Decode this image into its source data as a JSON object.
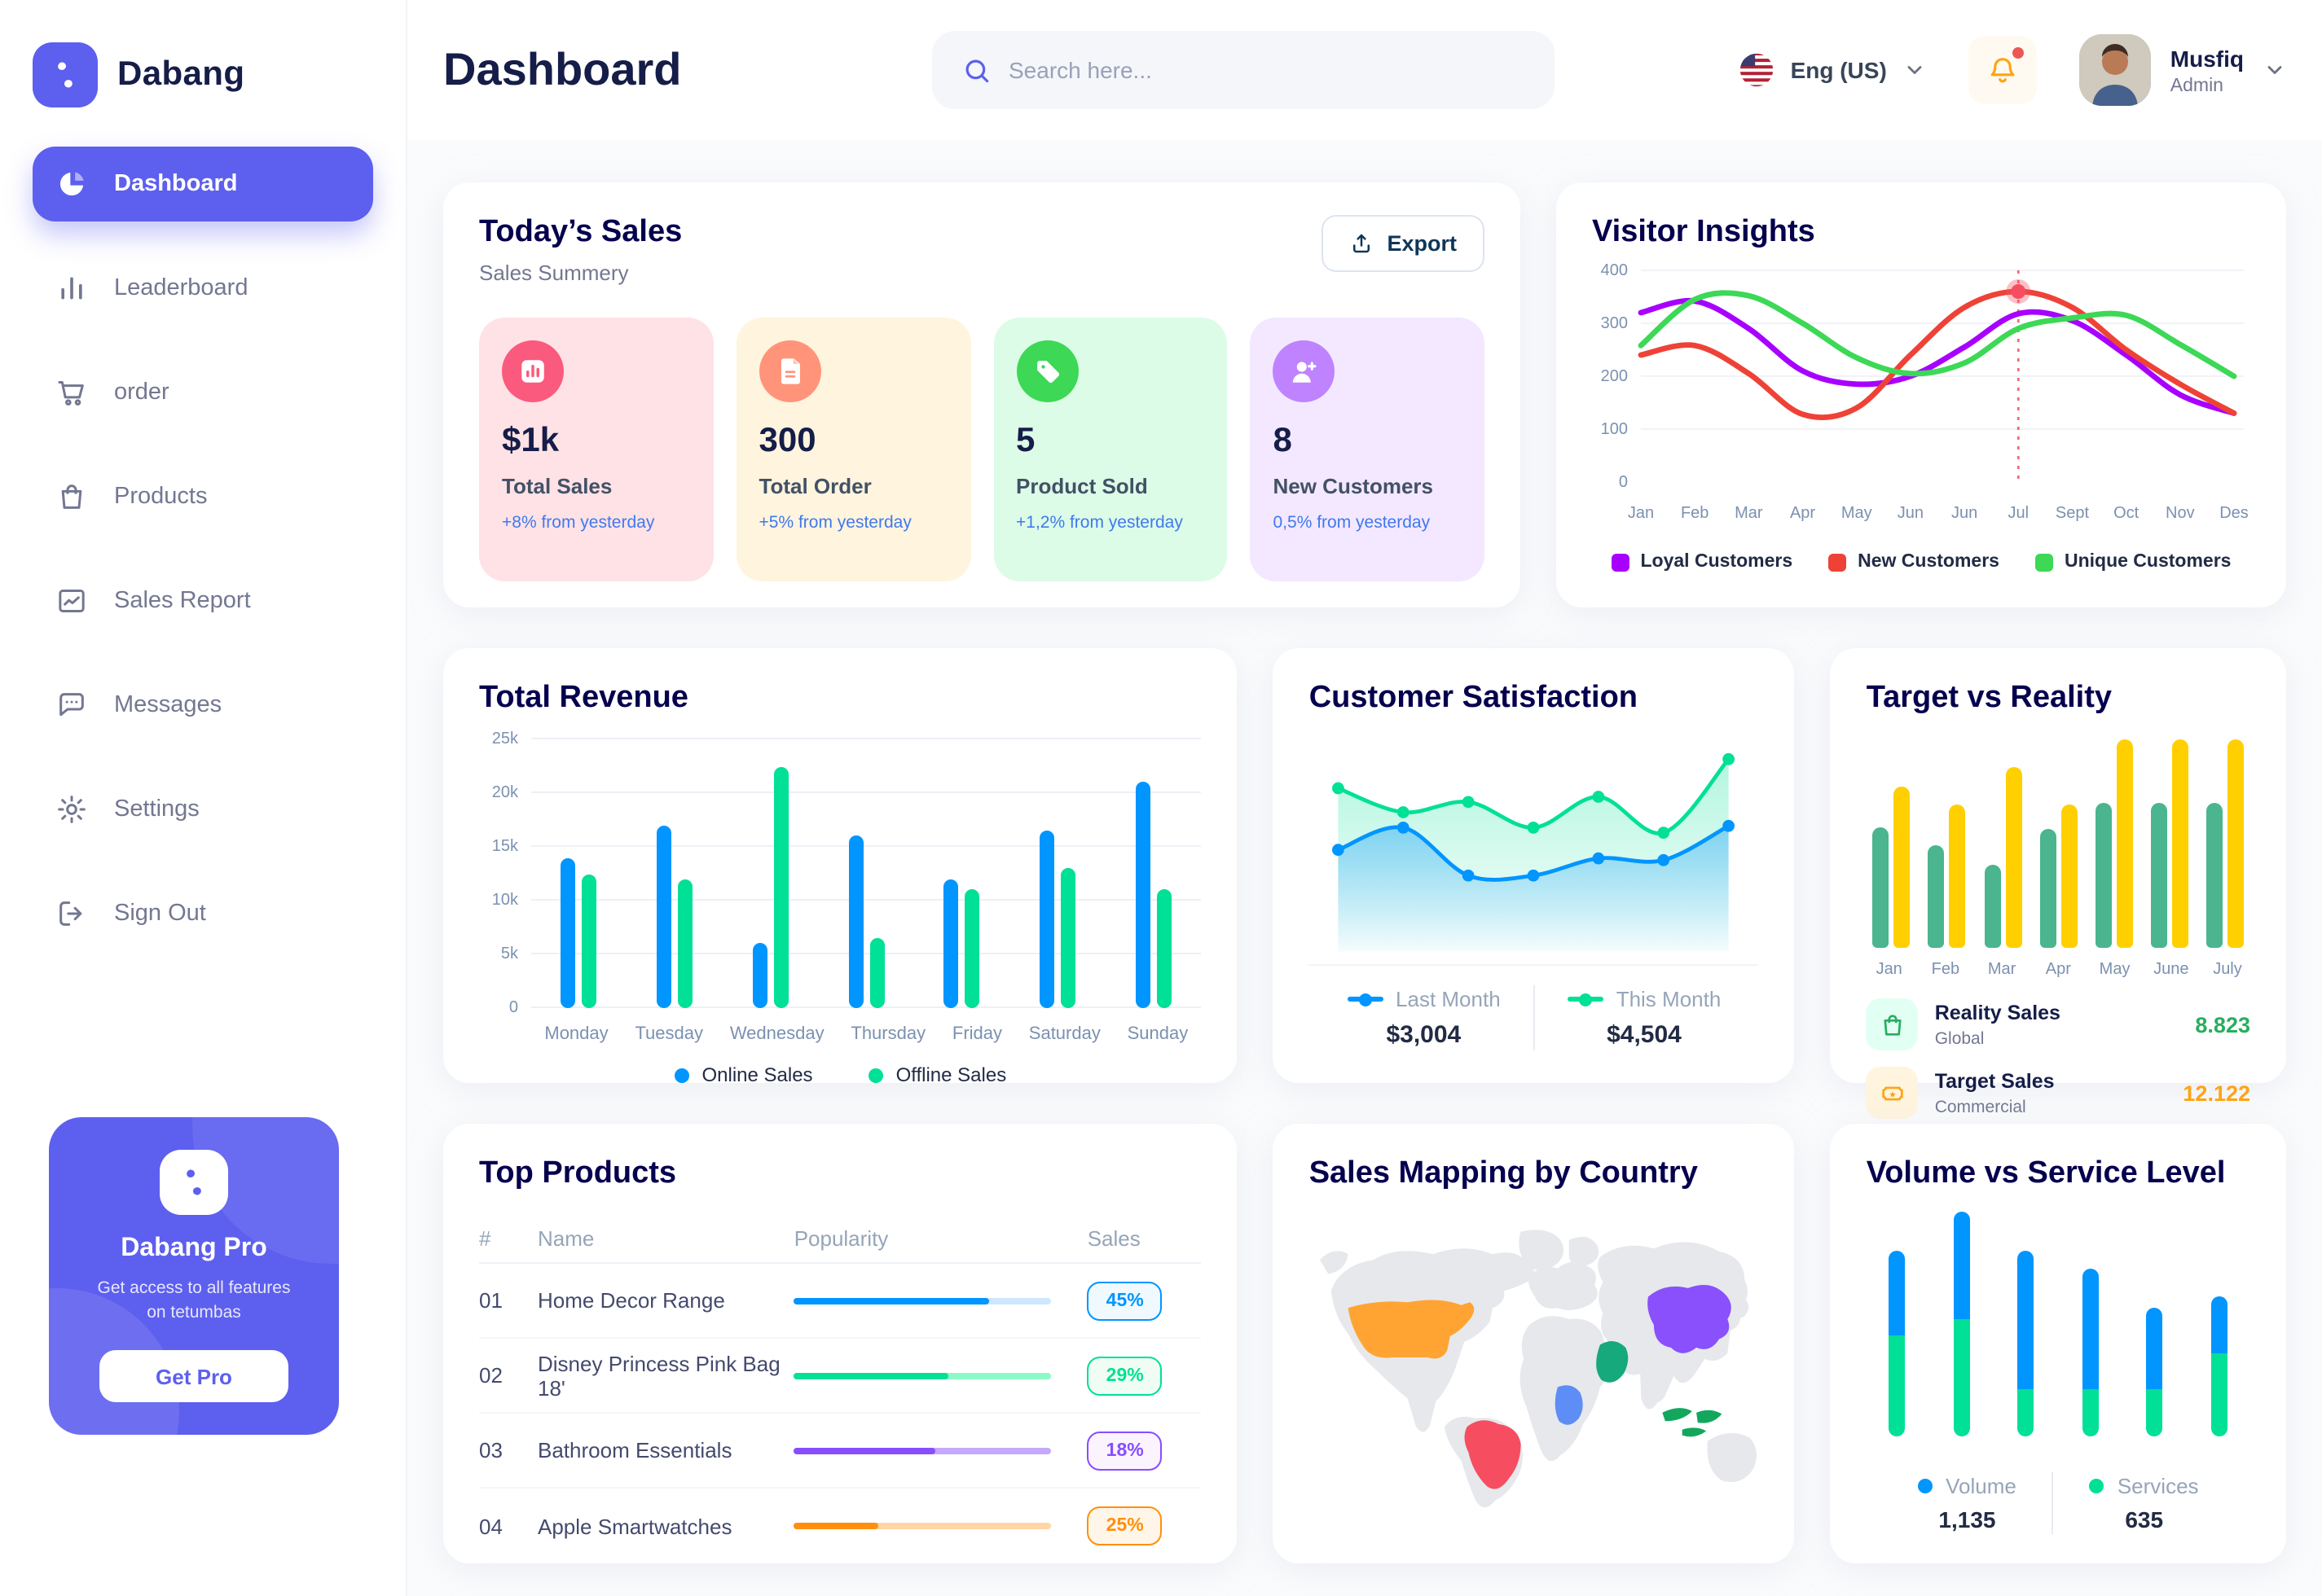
{
  "colors": {
    "primary": "#5D5FEF",
    "navy": "#151D48",
    "online_blue": "#0095FF",
    "offline_green": "#00E096",
    "loyal_purple": "#A700FF",
    "new_red": "#EF4237",
    "unique_green": "#3CD856",
    "reality_green": "#4AB58E",
    "target_yellow": "#FFCF00",
    "bell_orange": "#FFA412",
    "alert_red": "#EB5757"
  },
  "sidebar": {
    "brand": "Dabang",
    "items": [
      {
        "label": "Dashboard",
        "icon": "dashboard",
        "active": true
      },
      {
        "label": "Leaderboard",
        "icon": "leaderboard",
        "active": false
      },
      {
        "label": "order",
        "icon": "order",
        "active": false
      },
      {
        "label": "Products",
        "icon": "products",
        "active": false
      },
      {
        "label": "Sales Report",
        "icon": "sales-report",
        "active": false
      },
      {
        "label": "Messages",
        "icon": "messages",
        "active": false
      },
      {
        "label": "Settings",
        "icon": "settings",
        "active": false
      },
      {
        "label": "Sign Out",
        "icon": "sign-out",
        "active": false
      }
    ],
    "pro": {
      "title": "Dabang Pro",
      "subtitle": "Get access to all features on tetumbas",
      "button": "Get Pro"
    }
  },
  "header": {
    "title": "Dashboard",
    "search_placeholder": "Search here...",
    "language": "Eng (US)",
    "user": {
      "name": "Musfiq",
      "role": "Admin"
    }
  },
  "today_sales": {
    "title": "Today’s Sales",
    "subtitle": "Sales Summery",
    "export_label": "Export",
    "cards": [
      {
        "value": "$1k",
        "label": "Total Sales",
        "delta": "+8% from yesterday",
        "bg": "#FFE2E5",
        "icon_bg": "#FA5A7D",
        "icon": "bar-chart"
      },
      {
        "value": "300",
        "label": "Total Order",
        "delta": "+5% from yesterday",
        "bg": "#FFF4DE",
        "icon_bg": "#FF947A",
        "icon": "order-file"
      },
      {
        "value": "5",
        "label": "Product Sold",
        "delta": "+1,2% from yesterday",
        "bg": "#DCFCE7",
        "icon_bg": "#3CD856",
        "icon": "tag"
      },
      {
        "value": "8",
        "label": "New Customers",
        "delta": "0,5% from yesterday",
        "bg": "#F3E8FF",
        "icon_bg": "#BF83FF",
        "icon": "new-user"
      }
    ]
  },
  "visitor_insights": {
    "title": "Visitor Insights",
    "chart": {
      "type": "line",
      "x": [
        "Jan",
        "Feb",
        "Mar",
        "Apr",
        "May",
        "Jun",
        "Jun",
        "Jul",
        "Sept",
        "Oct",
        "Nov",
        "Des"
      ],
      "yticks": [
        0,
        100,
        200,
        300,
        400
      ],
      "ylim": [
        0,
        400
      ],
      "series": [
        {
          "name": "Loyal Customers",
          "color": "#A700FF",
          "values": [
            320,
            342,
            290,
            210,
            185,
            200,
            255,
            318,
            305,
            240,
            165,
            130
          ]
        },
        {
          "name": "New Customers",
          "color": "#EF4237",
          "values": [
            240,
            258,
            205,
            128,
            140,
            240,
            330,
            360,
            330,
            250,
            185,
            130
          ]
        },
        {
          "name": "Unique Customers",
          "color": "#3CD856",
          "values": [
            258,
            345,
            352,
            300,
            235,
            205,
            225,
            290,
            310,
            315,
            260,
            200
          ]
        }
      ],
      "marker": {
        "x_index": 7,
        "series_index": 1,
        "value": 360
      }
    }
  },
  "total_revenue": {
    "title": "Total Revenue",
    "chart": {
      "type": "bar",
      "categories": [
        "Monday",
        "Tuesday",
        "Wednesday",
        "Thursday",
        "Friday",
        "Saturday",
        "Sunday"
      ],
      "yticks": [
        "0",
        "5k",
        "10k",
        "15k",
        "20k",
        "25k"
      ],
      "ymax": 25,
      "series": [
        {
          "name": "Online Sales",
          "color": "#0095FF",
          "values": [
            14,
            17,
            6,
            16,
            12,
            16.5,
            21
          ]
        },
        {
          "name": "Offline Sales",
          "color": "#00E096",
          "values": [
            12.5,
            12,
            22.5,
            6.5,
            11,
            13,
            11
          ]
        }
      ]
    }
  },
  "customer_satisfaction": {
    "title": "Customer Satisfaction",
    "chart": {
      "type": "area",
      "ymax": 100,
      "series": [
        {
          "name": "Last Month",
          "total": "$3,004",
          "color": "#0095FF",
          "values": [
            42,
            55,
            27,
            27,
            37,
            36,
            56
          ]
        },
        {
          "name": "This Month",
          "total": "$4,504",
          "color": "#00E096",
          "values": [
            78,
            64,
            70,
            55,
            73,
            52,
            95
          ]
        }
      ]
    }
  },
  "target_vs_reality": {
    "title": "Target vs Reality",
    "chart": {
      "type": "bar",
      "categories": [
        "Jan",
        "Feb",
        "Mar",
        "Apr",
        "May",
        "June",
        "July"
      ],
      "ymax": 15,
      "series": [
        {
          "name": "Reality Sales",
          "color": "#4AB58E",
          "values": [
            8.5,
            7.2,
            5.9,
            8.4,
            10.2,
            10.2,
            10.2
          ]
        },
        {
          "name": "Target Sales",
          "color": "#FFCF00",
          "values": [
            11.3,
            10,
            12.7,
            10,
            14.6,
            14.6,
            14.6
          ]
        }
      ]
    },
    "legend": [
      {
        "name": "Reality Sales",
        "desc": "Global",
        "value": "8.823",
        "value_color": "#27AE60",
        "icon": "bag",
        "icon_color": "#27AE60",
        "icon_bg": "#E2FFF3"
      },
      {
        "name": "Target Sales",
        "desc": "Commercial",
        "value": "12.122",
        "value_color": "#FFA412",
        "icon": "ticket",
        "icon_color": "#FFA412",
        "icon_bg": "#FFF4DE"
      }
    ]
  },
  "top_products": {
    "title": "Top Products",
    "headers": [
      "#",
      "Name",
      "Popularity",
      "Sales"
    ],
    "rows": [
      {
        "num": "01",
        "name": "Home Decor Range",
        "popularity": 76,
        "sales": "45%",
        "color": "#0095FF",
        "track": "#CDE7FF",
        "badge_bg": "#F0F9FF"
      },
      {
        "num": "02",
        "name": "Disney Princess Pink Bag 18'",
        "popularity": 60,
        "sales": "29%",
        "color": "#00E096",
        "track": "#8CFAC7",
        "badge_bg": "#F0FDF4"
      },
      {
        "num": "03",
        "name": "Bathroom Essentials",
        "popularity": 55,
        "sales": "18%",
        "color": "#884DFF",
        "track": "#C5A8FF",
        "badge_bg": "#FBF4FF"
      },
      {
        "num": "04",
        "name": "Apple Smartwatches",
        "popularity": 33,
        "sales": "25%",
        "color": "#FF8F0D",
        "track": "#FFD5A4",
        "badge_bg": "#FFF6E9"
      }
    ]
  },
  "sales_mapping": {
    "title": "Sales Mapping by Country",
    "countries": [
      {
        "name": "United States",
        "color": "#FFA432"
      },
      {
        "name": "Brazil",
        "color": "#F64E60"
      },
      {
        "name": "China",
        "color": "#8950FC"
      },
      {
        "name": "Saudi Arabia",
        "color": "#16A97C"
      },
      {
        "name": "DR Congo",
        "color": "#5E8DF5"
      },
      {
        "name": "Indonesia",
        "color": "#12A75C"
      }
    ]
  },
  "volume_service": {
    "title": "Volume vs Service Level",
    "chart": {
      "type": "stacked-bar",
      "series": [
        {
          "name": "Volume",
          "total": "1,135",
          "color": "#0095FF",
          "values": [
            44,
            56,
            72,
            62,
            42,
            30
          ]
        },
        {
          "name": "Services",
          "total": "635",
          "color": "#00E096",
          "values": [
            53,
            61,
            25,
            25,
            25,
            43
          ]
        }
      ]
    }
  }
}
